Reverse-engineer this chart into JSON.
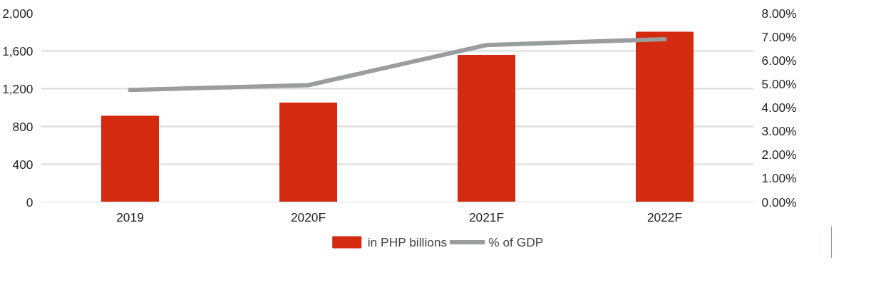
{
  "chart_data": {
    "type": "bar",
    "categories": [
      "2019",
      "2020F",
      "2021F",
      "2022F"
    ],
    "series": [
      {
        "name": "in PHP billions",
        "color": "#d42a10",
        "values": [
          910,
          1050,
          1555,
          1800
        ]
      },
      {
        "name": "% of GDP",
        "type": "line",
        "axis": "y2",
        "color": "#999d9d",
        "values": [
          4.75,
          4.95,
          6.65,
          6.9
        ]
      }
    ],
    "ylim": [
      0,
      2000
    ],
    "yticks": [
      {
        "value": 0,
        "label": "0"
      },
      {
        "value": 400,
        "label": "400"
      },
      {
        "value": 800,
        "label": "800"
      },
      {
        "value": 1200,
        "label": "1,200"
      },
      {
        "value": 1600,
        "label": "1,600"
      },
      {
        "value": 2000,
        "label": "2,000"
      }
    ],
    "y2lim": [
      0,
      8
    ],
    "y2ticks": [
      {
        "value": 0,
        "label": "0.00%"
      },
      {
        "value": 1,
        "label": "1.00%"
      },
      {
        "value": 2,
        "label": "2.00%"
      },
      {
        "value": 3,
        "label": "3.00%"
      },
      {
        "value": 4,
        "label": "4.00%"
      },
      {
        "value": 5,
        "label": "5.00%"
      },
      {
        "value": 6,
        "label": "6.00%"
      },
      {
        "value": 7,
        "label": "7.00%"
      },
      {
        "value": 8,
        "label": "8.00%"
      }
    ],
    "grid": "y",
    "legend": "bottom",
    "marker": "none",
    "line_style": "solid"
  }
}
